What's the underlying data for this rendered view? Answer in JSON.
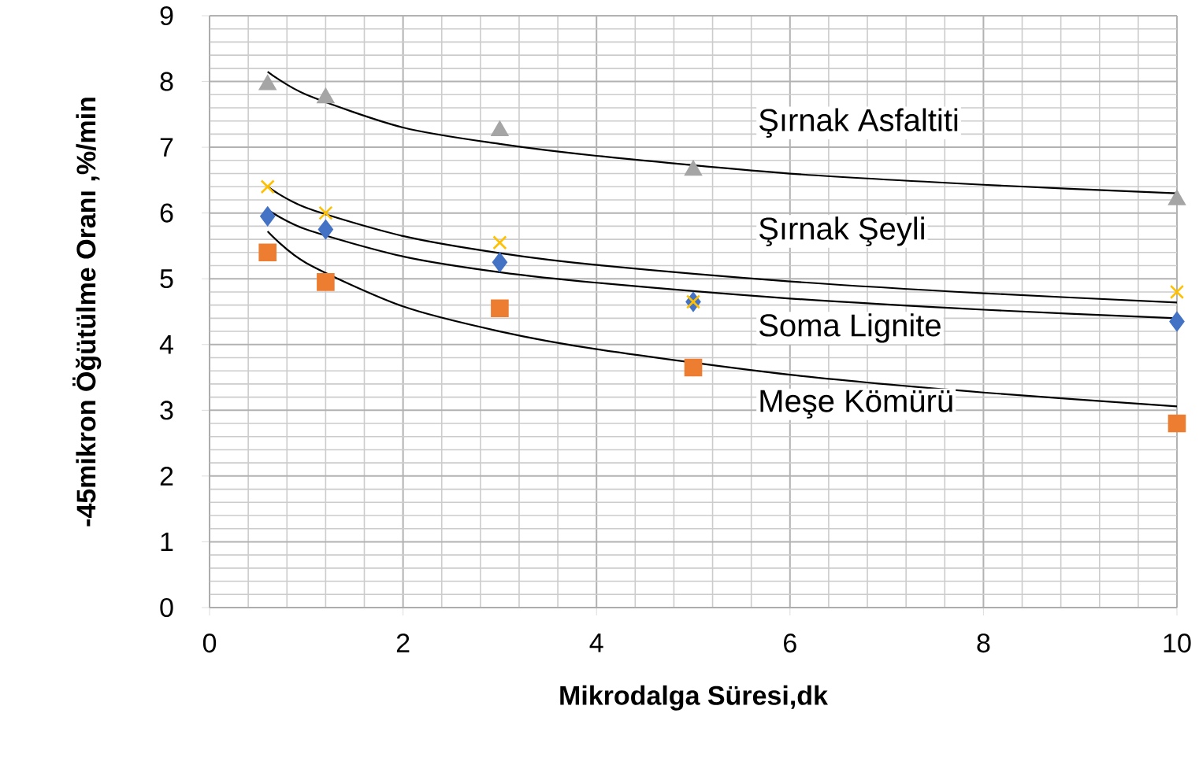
{
  "chart_data": {
    "type": "scatter",
    "xlabel": "Mikrodalga Süresi,dk",
    "ylabel": "-45mikron Öğütülme Oranı ,%/min",
    "xlim": [
      0,
      10
    ],
    "ylim": [
      0,
      9
    ],
    "xticks": [
      0,
      2,
      4,
      6,
      8,
      10
    ],
    "yticks": [
      0,
      1,
      2,
      3,
      4,
      5,
      6,
      7,
      8,
      9
    ],
    "grid": true,
    "legend": false,
    "series": [
      {
        "name": "Şırnak Asfaltiti",
        "marker": "triangle",
        "color": "#a5a5a5",
        "x": [
          0.6,
          1.2,
          3,
          5,
          10
        ],
        "values": [
          7.95,
          7.75,
          7.25,
          6.65,
          6.2
        ]
      },
      {
        "name": "Şırnak Şeyli",
        "marker": "cross",
        "color": "#ffc000",
        "x": [
          0.6,
          1.2,
          3,
          5,
          10
        ],
        "values": [
          6.4,
          6.0,
          5.55,
          4.65,
          4.8
        ]
      },
      {
        "name": "Soma Lignite",
        "marker": "diamond",
        "color": "#4472c4",
        "x": [
          0.6,
          1.2,
          3,
          5,
          10
        ],
        "values": [
          5.95,
          5.75,
          5.25,
          4.65,
          4.35
        ]
      },
      {
        "name": "Meşe Kömürü",
        "marker": "square",
        "color": "#ed7d31",
        "x": [
          0.6,
          1.2,
          3,
          5,
          10
        ],
        "values": [
          5.4,
          4.95,
          4.55,
          3.65,
          2.8
        ]
      },
      {
        "type": "line",
        "marker": "none",
        "color": "#000000",
        "x": [
          0.6,
          1,
          2,
          3,
          4,
          6,
          8,
          10
        ],
        "values": [
          8.15,
          7.8,
          7.3,
          7.05,
          6.87,
          6.6,
          6.43,
          6.3
        ]
      },
      {
        "type": "line",
        "marker": "none",
        "color": "#000000",
        "x": [
          0.6,
          1,
          2,
          3,
          4,
          6,
          8,
          10
        ],
        "values": [
          6.4,
          6.08,
          5.65,
          5.39,
          5.21,
          4.96,
          4.78,
          4.64
        ]
      },
      {
        "type": "line",
        "marker": "none",
        "color": "#000000",
        "x": [
          0.6,
          1,
          2,
          3,
          4,
          6,
          8,
          10
        ],
        "values": [
          6.05,
          5.75,
          5.34,
          5.1,
          4.94,
          4.7,
          4.53,
          4.4
        ]
      },
      {
        "type": "line",
        "marker": "none",
        "color": "#000000",
        "x": [
          0.6,
          1,
          2,
          3,
          4,
          6,
          8,
          10
        ],
        "values": [
          5.72,
          5.24,
          4.58,
          4.2,
          3.93,
          3.54,
          3.27,
          3.06
        ]
      }
    ]
  }
}
